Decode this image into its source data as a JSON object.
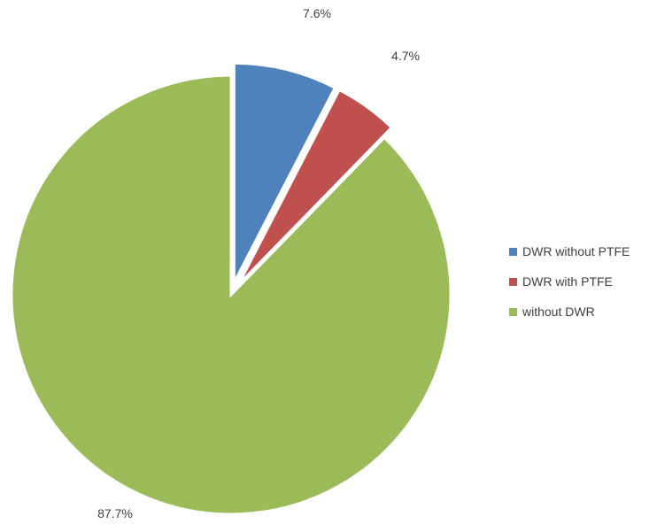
{
  "chart_data": {
    "type": "pie",
    "categories": [
      "DWR without PTFE",
      "DWR with PTFE",
      "without DWR"
    ],
    "values": [
      7.6,
      4.7,
      87.7
    ],
    "data_labels": [
      "7.6%",
      "4.7%",
      "87.7%"
    ],
    "colors": [
      "#4f81bd",
      "#c0504d",
      "#9bbb59"
    ],
    "exploded": [
      true,
      true,
      false
    ],
    "legend": {
      "position": "right",
      "entries": [
        "DWR without PTFE",
        "DWR with PTFE",
        "without DWR"
      ]
    }
  }
}
